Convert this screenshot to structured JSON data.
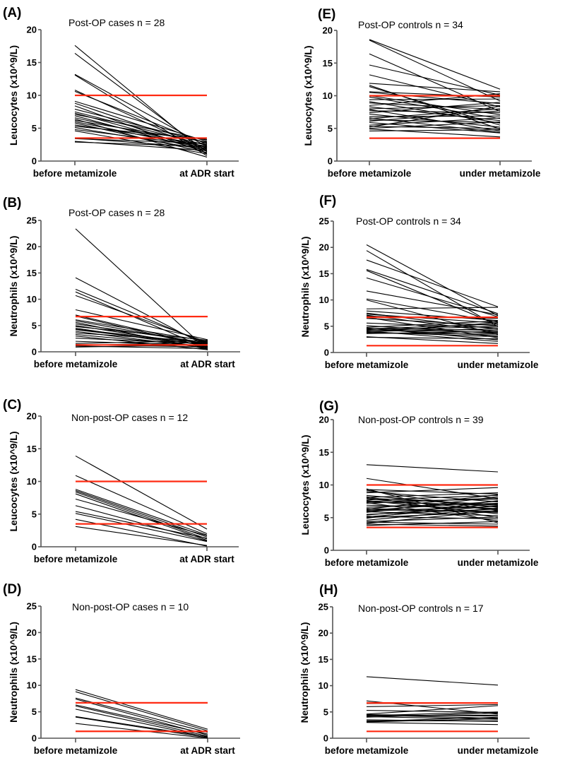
{
  "colors": {
    "reference_line": "#ff2a12",
    "series_line": "#000000",
    "axis": "#555555"
  },
  "chart_data": [
    {
      "id": "A",
      "type": "line",
      "panel_label": "(A)",
      "title": "Post-OP cases n = 28",
      "ylabel": "Leucocytes  (x10^9/L)",
      "xlabel": "",
      "categories": [
        "before metamizole",
        "at ADR start"
      ],
      "ylim": [
        0,
        20
      ],
      "yticks": [
        0,
        5,
        10,
        15,
        20
      ],
      "reference_lines": [
        10,
        3.5
      ],
      "series": [
        [
          17.6,
          1.0
        ],
        [
          16.4,
          1.4
        ],
        [
          13.2,
          2.2
        ],
        [
          13.1,
          0.8
        ],
        [
          10.8,
          1.6
        ],
        [
          10.6,
          2.6
        ],
        [
          9.1,
          3.0
        ],
        [
          8.8,
          2.0
        ],
        [
          8.4,
          1.2
        ],
        [
          7.9,
          2.8
        ],
        [
          7.5,
          2.4
        ],
        [
          7.3,
          1.8
        ],
        [
          7.1,
          3.2
        ],
        [
          6.9,
          1.5
        ],
        [
          6.6,
          2.1
        ],
        [
          6.4,
          0.6
        ],
        [
          6.2,
          2.9
        ],
        [
          6.0,
          1.9
        ],
        [
          5.8,
          1.3
        ],
        [
          5.5,
          2.5
        ],
        [
          5.3,
          3.3
        ],
        [
          5.1,
          1.7
        ],
        [
          4.8,
          2.3
        ],
        [
          4.6,
          1.1
        ],
        [
          3.5,
          2.0
        ],
        [
          3.4,
          2.7
        ],
        [
          3.0,
          1.6
        ],
        [
          2.9,
          2.2
        ]
      ]
    },
    {
      "id": "B",
      "type": "line",
      "panel_label": "(B)",
      "title": "Post-OP cases n = 28",
      "ylabel": "Neutrophils (x10^9/L)",
      "xlabel": "",
      "categories": [
        "before metamizole",
        "at ADR start"
      ],
      "ylim": [
        0,
        25
      ],
      "yticks": [
        0,
        5,
        10,
        15,
        20,
        25
      ],
      "reference_lines": [
        6.7,
        1.3
      ],
      "series": [
        [
          23.4,
          0.3
        ],
        [
          14.1,
          1.0
        ],
        [
          11.9,
          1.5
        ],
        [
          11.4,
          0.6
        ],
        [
          10.7,
          1.8
        ],
        [
          8.0,
          2.3
        ],
        [
          7.0,
          1.2
        ],
        [
          6.8,
          0.9
        ],
        [
          6.1,
          2.0
        ],
        [
          5.9,
          1.4
        ],
        [
          5.6,
          0.5
        ],
        [
          5.3,
          1.7
        ],
        [
          5.0,
          1.1
        ],
        [
          4.8,
          2.2
        ],
        [
          4.5,
          0.8
        ],
        [
          4.3,
          1.6
        ],
        [
          4.2,
          1.3
        ],
        [
          3.9,
          0.7
        ],
        [
          3.6,
          1.9
        ],
        [
          3.3,
          1.0
        ],
        [
          3.0,
          0.4
        ],
        [
          2.6,
          1.5
        ],
        [
          2.0,
          1.2
        ],
        [
          1.6,
          2.1
        ],
        [
          1.4,
          0.9
        ],
        [
          1.2,
          1.8
        ],
        [
          1.1,
          0.6
        ],
        [
          0.9,
          1.3
        ]
      ]
    },
    {
      "id": "C",
      "type": "line",
      "panel_label": "(C)",
      "title": "Non-post-OP cases n = 12",
      "ylabel": "Leucocytes  (x10^9/L)",
      "xlabel": "",
      "categories": [
        "before metamizole",
        "at ADR start"
      ],
      "ylim": [
        0,
        20
      ],
      "yticks": [
        0,
        5,
        10,
        15,
        20
      ],
      "reference_lines": [
        10,
        3.5
      ],
      "series": [
        [
          13.9,
          2.7
        ],
        [
          10.9,
          2.0
        ],
        [
          8.8,
          1.8
        ],
        [
          8.6,
          1.5
        ],
        [
          8.4,
          1.2
        ],
        [
          8.1,
          1.0
        ],
        [
          7.3,
          1.7
        ],
        [
          6.3,
          0.9
        ],
        [
          5.4,
          1.3
        ],
        [
          5.1,
          0.8
        ],
        [
          4.2,
          0.1
        ],
        [
          3.1,
          0.2
        ]
      ]
    },
    {
      "id": "D",
      "type": "line",
      "panel_label": "(D)",
      "title": "Non-post-OP cases n = 10",
      "ylabel": "Neutrophils (x10^9/L)",
      "xlabel": "",
      "categories": [
        "before metamizole",
        "at ADR start"
      ],
      "ylim": [
        0,
        25
      ],
      "yticks": [
        0,
        5,
        10,
        15,
        20,
        25
      ],
      "reference_lines": [
        6.7,
        1.3
      ],
      "series": [
        [
          9.2,
          1.7
        ],
        [
          8.8,
          1.4
        ],
        [
          7.6,
          1.1
        ],
        [
          7.4,
          0.6
        ],
        [
          6.3,
          0.8
        ],
        [
          6.1,
          0.4
        ],
        [
          5.5,
          0.2
        ],
        [
          4.1,
          0.3
        ],
        [
          4.0,
          0.1
        ],
        [
          2.8,
          0.0
        ]
      ]
    },
    {
      "id": "E",
      "type": "line",
      "panel_label": "(E)",
      "title": "Post-OP controls n = 34",
      "ylabel": "Leucocytes (x10^9/L)",
      "xlabel": "",
      "categories": [
        "before metamizole",
        "under metamizole"
      ],
      "ylim": [
        0,
        20
      ],
      "yticks": [
        0,
        5,
        10,
        15,
        20
      ],
      "reference_lines": [
        10,
        3.5
      ],
      "series": [
        [
          18.6,
          11.0
        ],
        [
          18.5,
          9.2
        ],
        [
          16.4,
          7.6
        ],
        [
          14.7,
          10.1
        ],
        [
          13.2,
          8.3
        ],
        [
          11.9,
          10.6
        ],
        [
          11.6,
          4.9
        ],
        [
          11.4,
          5.5
        ],
        [
          10.6,
          9.8
        ],
        [
          10.5,
          8.8
        ],
        [
          10.0,
          7.1
        ],
        [
          9.8,
          6.5
        ],
        [
          9.4,
          9.5
        ],
        [
          9.1,
          5.8
        ],
        [
          8.9,
          7.9
        ],
        [
          8.5,
          10.3
        ],
        [
          8.3,
          6.2
        ],
        [
          8.0,
          8.5
        ],
        [
          7.9,
          4.6
        ],
        [
          7.7,
          7.4
        ],
        [
          7.4,
          9.0
        ],
        [
          7.2,
          5.2
        ],
        [
          6.8,
          6.9
        ],
        [
          6.6,
          4.4
        ],
        [
          6.5,
          8.0
        ],
        [
          6.3,
          5.9
        ],
        [
          6.1,
          7.7
        ],
        [
          5.9,
          4.3
        ],
        [
          5.5,
          6.6
        ],
        [
          5.3,
          5.0
        ],
        [
          5.2,
          8.4
        ],
        [
          5.0,
          6.0
        ],
        [
          4.9,
          3.7
        ],
        [
          4.6,
          4.8
        ]
      ]
    },
    {
      "id": "F",
      "type": "line",
      "panel_label": "(F)",
      "title": "Post-OP controls n = 34",
      "ylabel": "Neutrophils (x10^9/L)",
      "xlabel": "",
      "categories": [
        "before metamizole",
        "under metamizole"
      ],
      "ylim": [
        0,
        25
      ],
      "yticks": [
        0,
        5,
        10,
        15,
        20,
        25
      ],
      "reference_lines": [
        6.7,
        1.3
      ],
      "series": [
        [
          20.5,
          7.0
        ],
        [
          19.4,
          4.9
        ],
        [
          17.6,
          8.7
        ],
        [
          15.8,
          7.4
        ],
        [
          15.6,
          5.3
        ],
        [
          14.2,
          6.8
        ],
        [
          11.7,
          7.2
        ],
        [
          10.2,
          5.8
        ],
        [
          10.0,
          3.4
        ],
        [
          8.3,
          8.6
        ],
        [
          7.9,
          6.1
        ],
        [
          7.5,
          4.4
        ],
        [
          7.3,
          5.6
        ],
        [
          7.1,
          3.9
        ],
        [
          6.9,
          6.5
        ],
        [
          6.7,
          2.8
        ],
        [
          6.5,
          5.1
        ],
        [
          5.6,
          4.7
        ],
        [
          5.1,
          3.6
        ],
        [
          4.8,
          6.0
        ],
        [
          4.7,
          2.4
        ],
        [
          4.6,
          4.2
        ],
        [
          4.5,
          5.4
        ],
        [
          4.4,
          3.2
        ],
        [
          4.3,
          3.8
        ],
        [
          4.2,
          5.0
        ],
        [
          4.1,
          2.1
        ],
        [
          4.0,
          4.5
        ],
        [
          3.9,
          3.0
        ],
        [
          3.8,
          5.7
        ],
        [
          3.7,
          3.5
        ],
        [
          3.6,
          4.0
        ],
        [
          3.0,
          1.7
        ],
        [
          2.9,
          2.6
        ]
      ]
    },
    {
      "id": "G",
      "type": "line",
      "panel_label": "(G)",
      "title": "Non-post-OP controls n = 39",
      "ylabel": "Leucocytes (x10^9/L)",
      "xlabel": "",
      "categories": [
        "before metamizole",
        "under metamizole"
      ],
      "ylim": [
        0,
        20
      ],
      "yticks": [
        0,
        5,
        10,
        15,
        20
      ],
      "reference_lines": [
        10,
        3.5
      ],
      "series": [
        [
          13.1,
          12.0
        ],
        [
          11.0,
          7.9
        ],
        [
          9.4,
          4.2
        ],
        [
          9.3,
          8.6
        ],
        [
          9.2,
          6.1
        ],
        [
          9.0,
          7.4
        ],
        [
          8.8,
          9.6
        ],
        [
          8.4,
          6.6
        ],
        [
          8.2,
          5.0
        ],
        [
          8.1,
          8.8
        ],
        [
          8.0,
          7.0
        ],
        [
          7.9,
          6.2
        ],
        [
          7.7,
          8.4
        ],
        [
          7.6,
          5.6
        ],
        [
          7.5,
          7.8
        ],
        [
          7.4,
          6.9
        ],
        [
          7.3,
          4.5
        ],
        [
          7.2,
          8.0
        ],
        [
          6.9,
          6.4
        ],
        [
          6.6,
          7.2
        ],
        [
          6.4,
          5.8
        ],
        [
          6.3,
          8.5
        ],
        [
          6.2,
          6.0
        ],
        [
          6.1,
          7.5
        ],
        [
          6.0,
          6.7
        ],
        [
          5.9,
          5.3
        ],
        [
          5.8,
          8.2
        ],
        [
          5.5,
          6.3
        ],
        [
          5.4,
          7.1
        ],
        [
          5.2,
          4.8
        ],
        [
          5.1,
          6.8
        ],
        [
          5.0,
          5.9
        ],
        [
          4.9,
          7.6
        ],
        [
          4.6,
          6.5
        ],
        [
          4.4,
          5.1
        ],
        [
          4.3,
          4.0
        ],
        [
          4.1,
          6.1
        ],
        [
          4.0,
          3.7
        ],
        [
          3.8,
          4.4
        ]
      ]
    },
    {
      "id": "H",
      "type": "line",
      "panel_label": "(H)",
      "title": "Non-post-OP controls n = 17",
      "ylabel": "Neutrophils (x10^9/L)",
      "xlabel": "",
      "categories": [
        "before metamizole",
        "under metamizole"
      ],
      "ylim": [
        0,
        25
      ],
      "yticks": [
        0,
        5,
        10,
        15,
        20,
        25
      ],
      "reference_lines": [
        6.7,
        1.3
      ],
      "series": [
        [
          11.7,
          10.1
        ],
        [
          7.1,
          4.6
        ],
        [
          6.6,
          6.7
        ],
        [
          6.0,
          6.4
        ],
        [
          5.3,
          4.9
        ],
        [
          4.6,
          6.2
        ],
        [
          4.5,
          4.2
        ],
        [
          4.4,
          3.8
        ],
        [
          4.3,
          5.0
        ],
        [
          4.2,
          4.4
        ],
        [
          4.1,
          3.6
        ],
        [
          4.0,
          4.8
        ],
        [
          3.3,
          3.3
        ],
        [
          3.2,
          4.0
        ],
        [
          3.1,
          3.7
        ],
        [
          3.0,
          2.6
        ],
        [
          3.5,
          3.2
        ]
      ]
    }
  ]
}
